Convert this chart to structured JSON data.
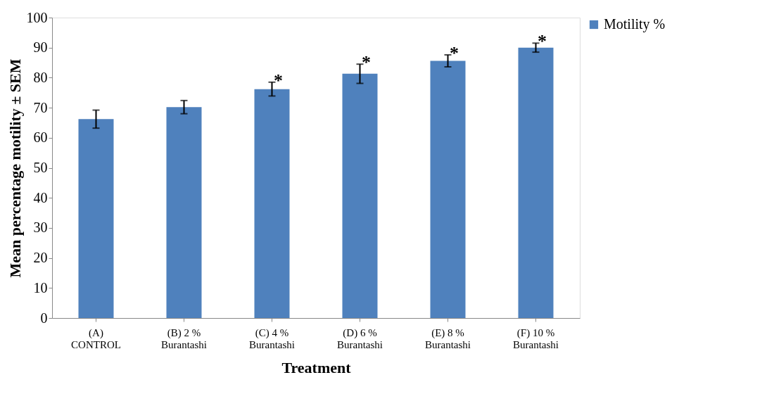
{
  "chart_data": {
    "type": "bar",
    "xlabel": "Treatment",
    "ylabel": "Mean percentage motility ± SEM",
    "categories": [
      "(A) CONTROL",
      "(B) 2 % Burantashi",
      "(C) 4 % Burantashi",
      "(D) 6 % Burantashi",
      "(E) 8 % Burantashi",
      "(F) 10 % Burantashi"
    ],
    "series": [
      {
        "name": "Motility %",
        "color": "#4f81bd",
        "values": [
          66.2,
          70.2,
          76.2,
          81.3,
          85.6,
          90
        ],
        "errors": [
          3,
          2.2,
          2.3,
          3.2,
          2,
          1.5
        ]
      }
    ],
    "annotations": [
      {
        "text": "*",
        "x": "(C) 4 % Burantashi",
        "y": 78.5
      },
      {
        "text": "*",
        "x": "(D) 6 % Burantashi",
        "y": 84.5
      },
      {
        "text": "*",
        "x": "(E) 8 % Burantashi",
        "y": 87.6
      },
      {
        "text": "*",
        "x": "(F) 10 % Burantashi",
        "y": 91.5
      }
    ],
    "ylim": [
      0,
      100
    ],
    "yticks": [
      0,
      10,
      20,
      30,
      40,
      50,
      60,
      70,
      80,
      90,
      100
    ],
    "grid": false,
    "legend": "right"
  }
}
